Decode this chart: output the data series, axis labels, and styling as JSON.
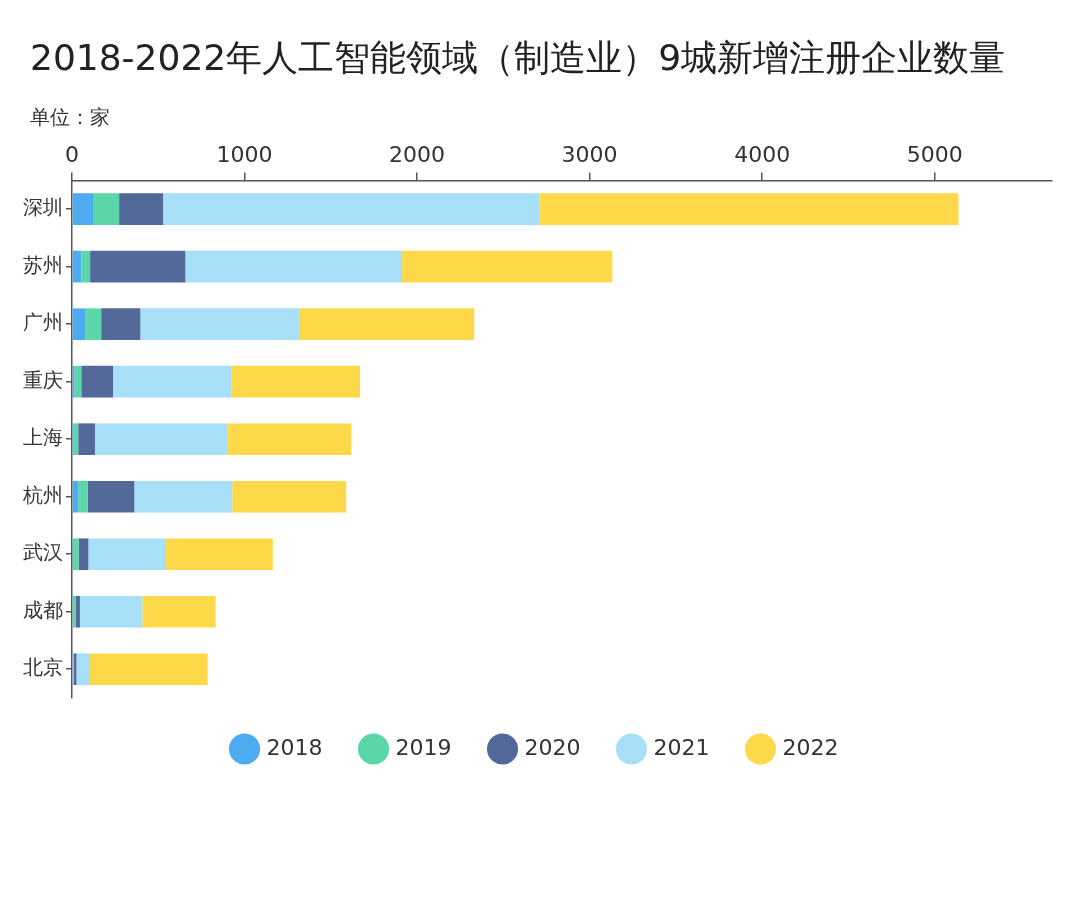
{
  "chart_data": {
    "type": "bar",
    "orientation": "horizontal",
    "stacked": true,
    "title": "2018-2022年人工智能领域（制造业）9城新增注册企业数量",
    "subtitle": "单位：家",
    "categories": [
      "深圳",
      "苏州",
      "广州",
      "重庆",
      "上海",
      "杭州",
      "武汉",
      "成都",
      "北京"
    ],
    "series": [
      {
        "name": "2018",
        "color": "#4dabf0",
        "values": [
          122,
          55,
          79,
          14,
          10,
          36,
          10,
          null,
          5
        ]
      },
      {
        "name": "2019",
        "color": "#5ad6a8",
        "values": [
          151,
          50,
          90,
          40,
          26,
          55,
          29,
          21,
          5
        ]
      },
      {
        "name": "2020",
        "color": "#52699a",
        "values": [
          255,
          552,
          227,
          184,
          97,
          270,
          56,
          25,
          16
        ]
      },
      {
        "name": "2021",
        "color": "#a6dff7",
        "values": [
          2180,
          1256,
          919,
          688,
          766,
          568,
          450,
          362,
          73
        ]
      },
      {
        "name": "2022",
        "color": "#fdd94a",
        "values": [
          2430,
          1219,
          1016,
          744,
          720,
          660,
          619,
          424,
          687
        ]
      }
    ],
    "xlim": [
      0,
      5680
    ],
    "xticks": [
      0,
      1000,
      2000,
      3000,
      4000,
      5000
    ],
    "grid": false,
    "legend": "bottom"
  }
}
